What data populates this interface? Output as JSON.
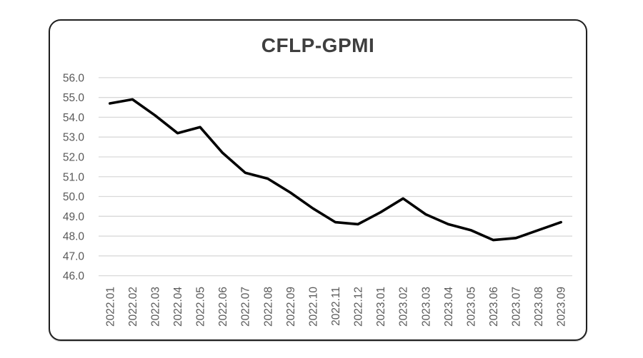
{
  "chart_data": {
    "type": "line",
    "title": "CFLP-GPMI",
    "categories": [
      "2022.01",
      "2022.02",
      "2022.03",
      "2022.04",
      "2022.05",
      "2022.06",
      "2022.07",
      "2022.08",
      "2022.09",
      "2022.10",
      "2022.11",
      "2022.12",
      "2023.01",
      "2023.02",
      "2023.03",
      "2023.04",
      "2023.05",
      "2023.06",
      "2023.07",
      "2023.08",
      "2023.09"
    ],
    "series": [
      {
        "name": "CFLP-GPMI",
        "values": [
          54.7,
          54.9,
          54.1,
          53.2,
          53.5,
          52.2,
          51.2,
          50.9,
          50.2,
          49.4,
          48.7,
          48.6,
          49.2,
          49.9,
          49.1,
          48.6,
          48.3,
          47.8,
          47.9,
          48.3,
          48.7
        ]
      }
    ],
    "xlabel": "",
    "ylabel": "",
    "ylim": [
      46.0,
      56.0
    ],
    "ytick_step": 1.0,
    "ytick_labels": [
      "56.0",
      "55.0",
      "54.0",
      "53.0",
      "52.0",
      "51.0",
      "50.0",
      "49.0",
      "48.0",
      "47.0",
      "46.0"
    ],
    "xtick_rotation_degrees": 90,
    "grid": "horizontal",
    "legend_position": "none",
    "colors": {
      "line": "#000000",
      "gridline": "#d9d9d9",
      "axis_labels": "#595959",
      "title": "#3f3f3f",
      "card_border": "#1f1f1f",
      "background": "#ffffff"
    }
  }
}
